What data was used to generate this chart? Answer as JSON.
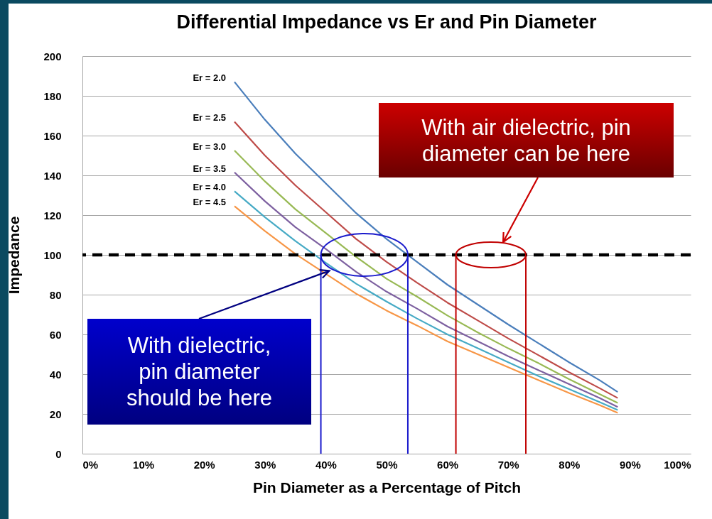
{
  "chart_data": {
    "type": "line",
    "title": "Differential Impedance vs Er and Pin Diameter",
    "xlabel": "Pin Diameter as a Percentage of Pitch",
    "ylabel": "Impedance",
    "x": [
      25,
      30,
      35,
      40,
      45,
      50,
      55,
      60,
      65,
      70,
      75,
      80,
      85,
      88
    ],
    "series": [
      {
        "name": "Er = 2.0",
        "color": "#4a7ebb",
        "values": [
          187,
          168,
          151,
          136,
          121,
          108,
          96.5,
          85,
          75,
          65,
          55.5,
          46,
          37,
          31
        ]
      },
      {
        "name": "Er = 2.5",
        "color": "#be4b48",
        "values": [
          167,
          150,
          135,
          121.5,
          108,
          96.5,
          86,
          76,
          67,
          58,
          49.5,
          41,
          33,
          28
        ]
      },
      {
        "name": "Er = 3.0",
        "color": "#98b954",
        "values": [
          152.5,
          137,
          123,
          111,
          99,
          88,
          79,
          69.5,
          61,
          53,
          45.5,
          37.5,
          30,
          25.5
        ]
      },
      {
        "name": "Er = 3.5",
        "color": "#7d60a0",
        "values": [
          141.5,
          127,
          114,
          103,
          91.5,
          81.5,
          73,
          64,
          56.5,
          49,
          42,
          35,
          28,
          23.5
        ]
      },
      {
        "name": "Er = 4.0",
        "color": "#46aac5",
        "values": [
          132,
          119,
          107,
          96,
          85.5,
          76.5,
          68,
          60,
          53,
          46,
          39,
          32.5,
          26,
          22
        ]
      },
      {
        "name": "Er = 4.5",
        "color": "#f79646",
        "values": [
          124.5,
          112,
          100.5,
          90.5,
          80.5,
          72,
          64.5,
          56.5,
          50,
          43.5,
          37,
          30.5,
          24.5,
          20.5
        ]
      }
    ],
    "xlim": [
      0,
      100
    ],
    "xticks": [
      {
        "value": 0,
        "label": "0%"
      },
      {
        "value": 10,
        "label": "10%"
      },
      {
        "value": 20,
        "label": "20%"
      },
      {
        "value": 30,
        "label": "30%"
      },
      {
        "value": 40,
        "label": "40%"
      },
      {
        "value": 50,
        "label": "50%"
      },
      {
        "value": 60,
        "label": "60%"
      },
      {
        "value": 70,
        "label": "70%"
      },
      {
        "value": 80,
        "label": "80%"
      },
      {
        "value": 90,
        "label": "90%"
      },
      {
        "value": 100,
        "label": "100%"
      }
    ],
    "ylim": [
      0,
      200
    ],
    "yticks": [
      0,
      20,
      40,
      60,
      80,
      100,
      120,
      140,
      160,
      180,
      200
    ],
    "grid": "y",
    "line_style": "solid",
    "ref_lines": [
      {
        "axis": "y",
        "value": 100,
        "color": "#000000",
        "line_style": "dashed"
      },
      {
        "axis": "x",
        "value": 39.2,
        "color": "#1a1acc"
      },
      {
        "axis": "x",
        "value": 53.5,
        "color": "#1a1acc"
      },
      {
        "axis": "x",
        "value": 61.4,
        "color": "#c00000"
      },
      {
        "axis": "x",
        "value": 72.9,
        "color": "#c00000"
      }
    ],
    "annotations": [
      "With air dielectric, pin diameter can be here",
      {
        "text": "With dielectric, pin diameter should be here",
        "x": 40.6,
        "y": 92
      }
    ]
  }
}
